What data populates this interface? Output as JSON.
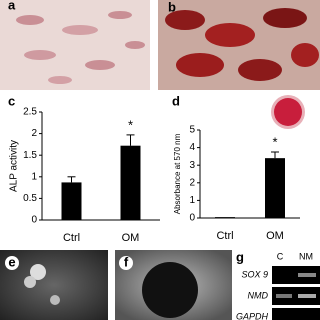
{
  "panels": {
    "a": "a",
    "b": "b",
    "e": "e",
    "f": "f",
    "g": "g"
  },
  "chart_data": [
    {
      "type": "bar",
      "panel": "c",
      "y_label": "ALP activity",
      "categories": [
        "Ctrl",
        "OM"
      ],
      "values": [
        0.87,
        1.72
      ],
      "errors": [
        0.13,
        0.25
      ],
      "significance": [
        null,
        "*"
      ],
      "color": "#000000",
      "ylim": [
        0,
        2.5
      ],
      "yticks": [
        0,
        0.5,
        1,
        1.5,
        2,
        2.5
      ]
    },
    {
      "type": "bar",
      "panel": "d",
      "y_label": "Absorbance at 570 nm",
      "categories": [
        "Ctrl",
        "OM"
      ],
      "values": [
        0.05,
        3.4
      ],
      "errors": [
        0,
        0.35
      ],
      "significance": [
        null,
        "*"
      ],
      "color": "#000000",
      "ylim": [
        0,
        5
      ],
      "yticks": [
        0,
        1,
        2,
        3,
        4,
        5
      ]
    }
  ],
  "gel": {
    "columns": [
      "C",
      "NM"
    ],
    "rows": [
      "SOX 9",
      "NMD",
      "GAPDH"
    ]
  }
}
